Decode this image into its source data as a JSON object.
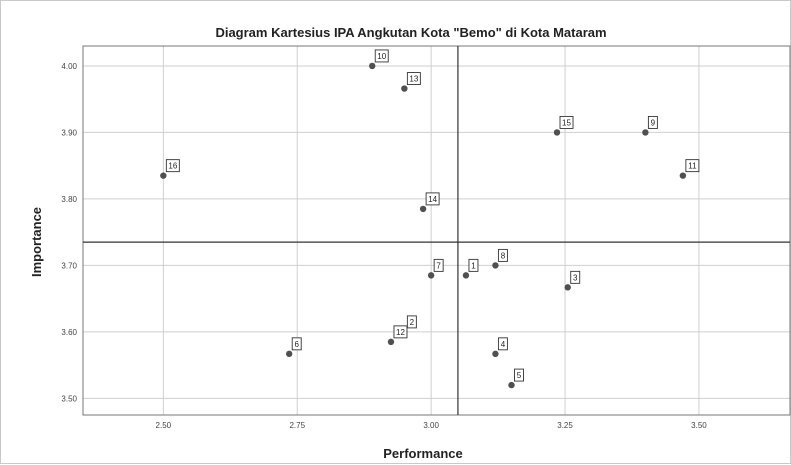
{
  "chart_data": {
    "type": "scatter",
    "title": "Diagram Kartesius IPA Angkutan Kota \"Bemo\" di Kota Mataram",
    "xlabel": "Performance",
    "ylabel": "Importance",
    "xlim": [
      2.35,
      3.67
    ],
    "ylim": [
      3.475,
      4.03
    ],
    "x_ticks": [
      "2.50",
      "2.75",
      "3.00",
      "3.25",
      "3.50"
    ],
    "x_tick_values": [
      2.5,
      2.75,
      3.0,
      3.25,
      3.5
    ],
    "y_ticks": [
      "4.00",
      "3.90",
      "3.80",
      "3.70",
      "3.60",
      "3.50"
    ],
    "y_tick_values": [
      4.0,
      3.9,
      3.8,
      3.7,
      3.6,
      3.5
    ],
    "grid": true,
    "reference_lines": {
      "x": 3.05,
      "y": 3.735
    },
    "points": [
      {
        "label": "10",
        "x": 2.89,
        "y": 4.0
      },
      {
        "label": "13",
        "x": 2.95,
        "y": 3.966
      },
      {
        "label": "15",
        "x": 3.235,
        "y": 3.9
      },
      {
        "label": "9",
        "x": 3.4,
        "y": 3.9
      },
      {
        "label": "16",
        "x": 2.5,
        "y": 3.835
      },
      {
        "label": "11",
        "x": 3.47,
        "y": 3.835
      },
      {
        "label": "14",
        "x": 2.985,
        "y": 3.785
      },
      {
        "label": "8",
        "x": 3.12,
        "y": 3.7
      },
      {
        "label": "7",
        "x": 3.0,
        "y": 3.685
      },
      {
        "label": "1",
        "x": 3.065,
        "y": 3.685
      },
      {
        "label": "3",
        "x": 3.255,
        "y": 3.667
      },
      {
        "label": "2",
        "x": 2.95,
        "y": 3.6
      },
      {
        "label": "12",
        "x": 2.925,
        "y": 3.585
      },
      {
        "label": "6",
        "x": 2.735,
        "y": 3.567
      },
      {
        "label": "4",
        "x": 3.12,
        "y": 3.567
      },
      {
        "label": "5",
        "x": 3.15,
        "y": 3.52
      }
    ]
  }
}
